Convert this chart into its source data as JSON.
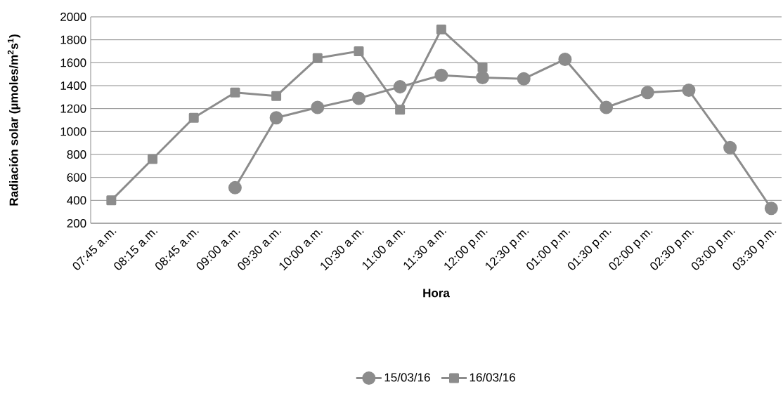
{
  "chart_data": {
    "type": "line",
    "xlabel": "Hora",
    "ylabel": "Radiación solar  (µmoles/m$^{2}$s$^{1}$)",
    "categories": [
      "07:45 a.m.",
      "08:15 a.m.",
      "08:45 a.m.",
      "09:00 a.m.",
      "09:30 a.m.",
      "10:00 a.m.",
      "10:30 a.m.",
      "11:00 a.m.",
      "11:30 a.m.",
      "12:00 p.m.",
      "12:30 p.m.",
      "01:00 p.m.",
      "01:30 p.m.",
      "02:00 p.m.",
      "02:30 p.m.",
      "03:00 p.m.",
      "03:30 p.m."
    ],
    "series": [
      {
        "name": "15/03/16",
        "color": "#8c8c8c",
        "marker": "circle",
        "values": [
          null,
          null,
          null,
          510,
          1120,
          1210,
          1290,
          1390,
          1490,
          1470,
          1460,
          1630,
          1210,
          1340,
          1360,
          860,
          330
        ]
      },
      {
        "name": "16/03/16",
        "color": "#8c8c8c",
        "marker": "square",
        "values": [
          400,
          760,
          1120,
          1340,
          1310,
          1640,
          1700,
          1190,
          1890,
          1560,
          null,
          null,
          null,
          null,
          null,
          null,
          null
        ]
      }
    ],
    "ylim": [
      200,
      2000
    ],
    "yticks": [
      200,
      400,
      600,
      800,
      1000,
      1200,
      1400,
      1600,
      1800,
      2000
    ],
    "grid": "y",
    "legend": "bottom",
    "line_style": "solid"
  }
}
